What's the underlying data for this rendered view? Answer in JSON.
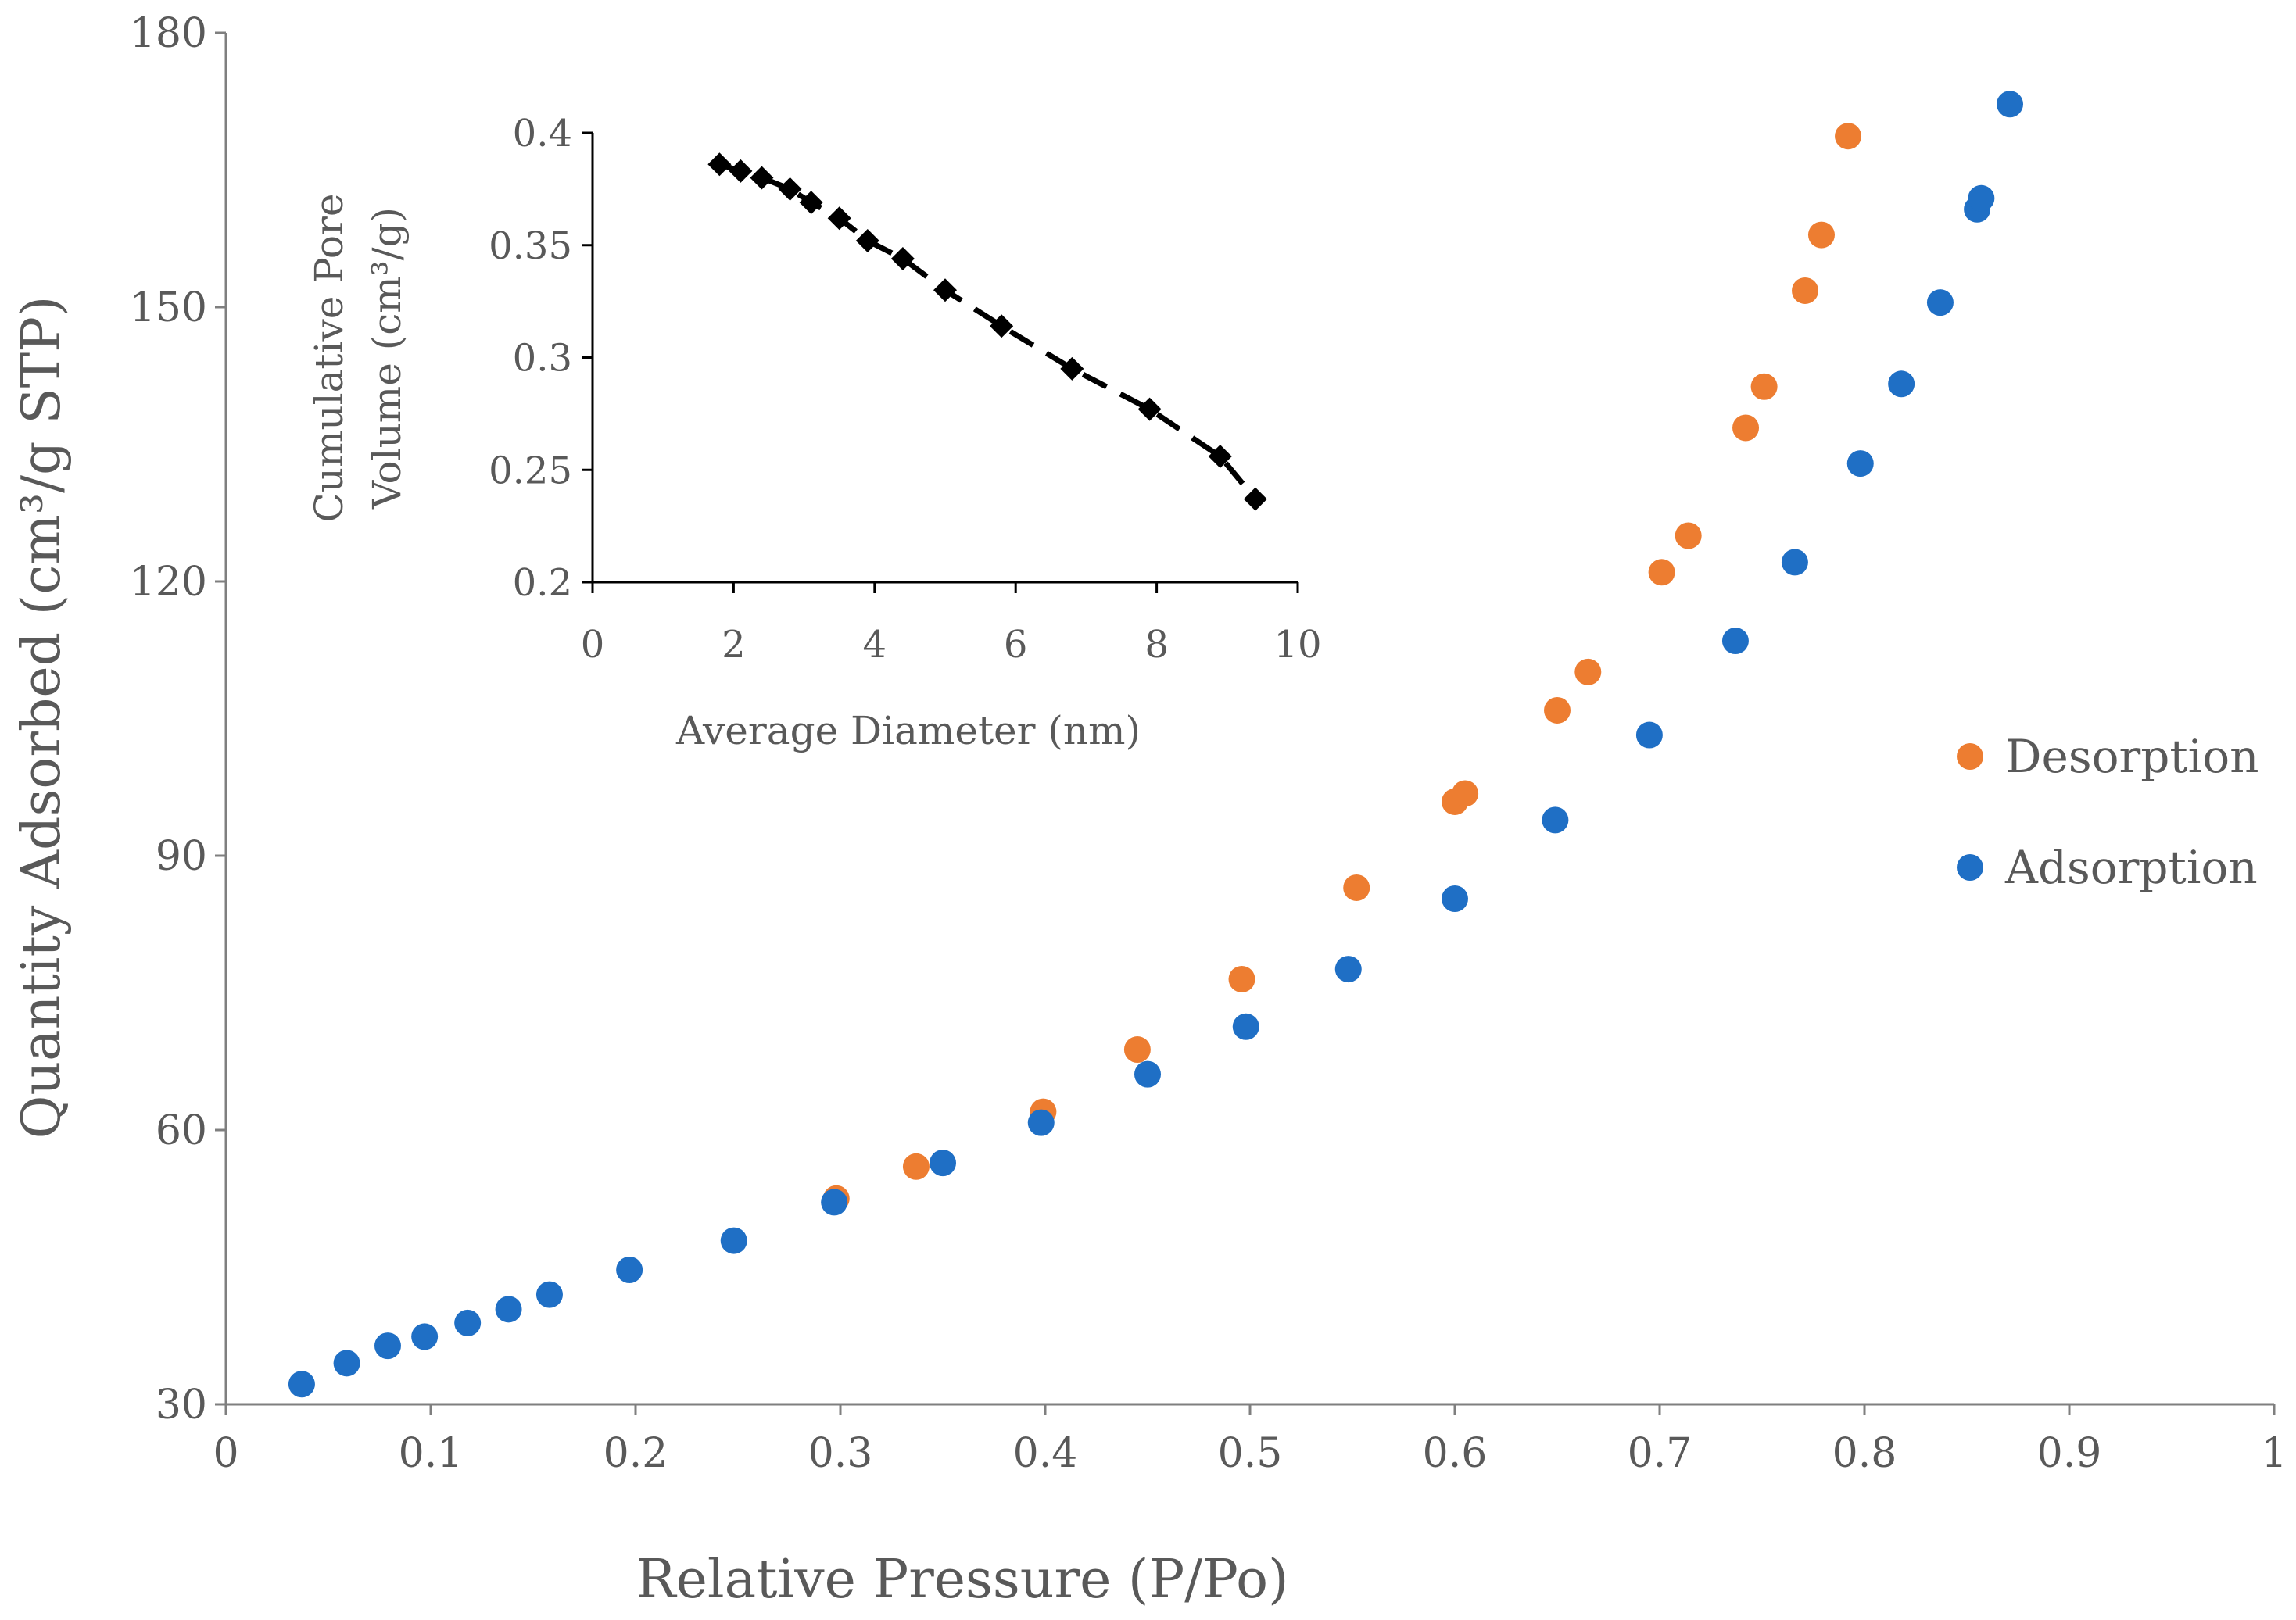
{
  "chart_data": [
    {
      "type": "scatter",
      "role": "main",
      "xlabel": "Relative Pressure (P/Po)",
      "ylabel": "Quantity Adsorbed (cm³/g STP)",
      "xlim": [
        0,
        1
      ],
      "ylim": [
        30,
        180
      ],
      "x_ticks": [
        0,
        0.1,
        0.2,
        0.3,
        0.4,
        0.5,
        0.6,
        0.7,
        0.8,
        0.9,
        1
      ],
      "x_tick_labels": [
        "0",
        "0.1",
        "0.2",
        "0.3",
        "0.4",
        "0.5",
        "0.6",
        "0.7",
        "0.8",
        "0.9",
        "1"
      ],
      "y_ticks": [
        30,
        60,
        90,
        120,
        150,
        180
      ],
      "y_tick_labels": [
        "30",
        "60",
        "90",
        "120",
        "150",
        "180"
      ],
      "legend_position": "right",
      "series": [
        {
          "name": "Desorption",
          "color": "#ED7D31",
          "x": [
            0.298,
            0.337,
            0.399,
            0.445,
            0.496,
            0.552,
            0.6,
            0.605,
            0.65,
            0.665,
            0.701,
            0.714,
            0.742,
            0.751,
            0.771,
            0.779,
            0.792
          ],
          "y": [
            52.5,
            56,
            62,
            68.8,
            76.5,
            86.5,
            95.9,
            96.8,
            105.9,
            110.1,
            121,
            125,
            136.8,
            141.3,
            151.8,
            157.9,
            168.7
          ]
        },
        {
          "name": "Adsorption",
          "color": "#1F6FC5",
          "x": [
            0.037,
            0.059,
            0.079,
            0.097,
            0.118,
            0.138,
            0.158,
            0.197,
            0.248,
            0.297,
            0.35,
            0.398,
            0.45,
            0.498,
            0.548,
            0.6,
            0.649,
            0.695,
            0.737,
            0.766,
            0.798,
            0.818,
            0.837,
            0.855,
            0.857,
            0.871
          ],
          "y": [
            32.2,
            34.5,
            36.4,
            37.4,
            38.9,
            40.4,
            42,
            44.7,
            47.9,
            52.1,
            56.4,
            60.8,
            66.1,
            71.3,
            77.6,
            85.3,
            93.9,
            103.2,
            113.5,
            122.1,
            132.9,
            141.6,
            150.5,
            160.7,
            161.9,
            172.2
          ]
        }
      ]
    },
    {
      "type": "scatter",
      "role": "inset",
      "xlabel": "Average Diameter (nm)",
      "ylabel_line1": "Cumulative Pore",
      "ylabel_line2": "Volume (cm³/g)",
      "xlim": [
        0,
        10
      ],
      "ylim": [
        0.2,
        0.4
      ],
      "x_ticks": [
        0,
        2,
        4,
        6,
        8,
        10
      ],
      "x_tick_labels": [
        "0",
        "2",
        "4",
        "6",
        "8",
        "10"
      ],
      "y_ticks": [
        0.2,
        0.25,
        0.3,
        0.35,
        0.4
      ],
      "y_tick_labels": [
        "0.2",
        "0.25",
        "0.3",
        "0.35",
        "0.4"
      ],
      "marker": "diamond",
      "line_style": "dashed",
      "color": "#000000",
      "x": [
        1.8,
        2.1,
        2.4,
        2.8,
        3.1,
        3.5,
        3.9,
        4.4,
        5.0,
        5.8,
        6.8,
        7.9,
        8.9,
        9.4
      ],
      "y": [
        0.386,
        0.383,
        0.38,
        0.375,
        0.369,
        0.362,
        0.352,
        0.344,
        0.33,
        0.314,
        0.295,
        0.277,
        0.256,
        0.237
      ]
    }
  ]
}
